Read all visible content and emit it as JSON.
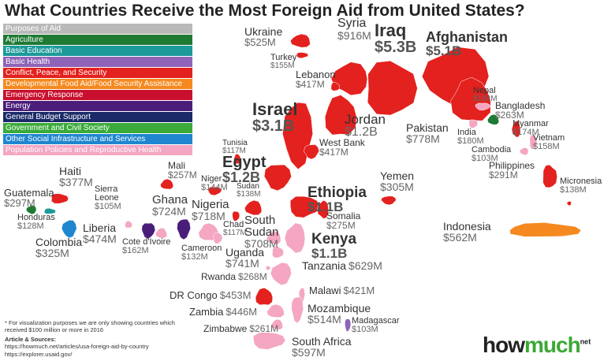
{
  "title": "What Countries Receive the Most Foreign Aid from United States?",
  "legend": {
    "title": "Purposes of Aid",
    "items": [
      "Agriculture",
      "Basic Education",
      "Basic Health",
      "Conflict, Peace, and Security",
      "Developmental Food Aid/Food Security Assistance",
      "Emergency Response",
      "Energy",
      "General Budget Support",
      "Government and Civil Society",
      "Other Social Infrastructure and Services",
      "Population Policies and Reproductive Health"
    ]
  },
  "countries": [
    {
      "name": "Ukraine",
      "amount": "$525M"
    },
    {
      "name": "Turkey",
      "amount": "$155M"
    },
    {
      "name": "Syria",
      "amount": "$916M"
    },
    {
      "name": "Iraq",
      "amount": "$5.3B"
    },
    {
      "name": "Afghanistan",
      "amount": "$5.1B"
    },
    {
      "name": "Lebanon",
      "amount": "$417M"
    },
    {
      "name": "Israel",
      "amount": "$3.1B"
    },
    {
      "name": "Jordan",
      "amount": "$1.2B"
    },
    {
      "name": "West Bank",
      "amount": "$417M"
    },
    {
      "name": "Pakistan",
      "amount": "$778M"
    },
    {
      "name": "Nepal",
      "amount": "$193M"
    },
    {
      "name": "Bangladesh",
      "amount": "$263M"
    },
    {
      "name": "India",
      "amount": "$180M"
    },
    {
      "name": "Myanmar",
      "amount": "$174M"
    },
    {
      "name": "Vietnam",
      "amount": "$158M"
    },
    {
      "name": "Cambodia",
      "amount": "$103M"
    },
    {
      "name": "Philippines",
      "amount": "$291M"
    },
    {
      "name": "Micronesia",
      "amount": "$138M"
    },
    {
      "name": "Indonesia",
      "amount": "$562M"
    },
    {
      "name": "Yemen",
      "amount": "$305M"
    },
    {
      "name": "Tunisia",
      "amount": "$117M"
    },
    {
      "name": "Egypt",
      "amount": "$1.2B"
    },
    {
      "name": "Mali",
      "amount": "$257M"
    },
    {
      "name": "Niger",
      "amount": "$144M"
    },
    {
      "name": "Sudan",
      "amount": "$138M"
    },
    {
      "name": "Ethiopia",
      "amount": "$1.1B"
    },
    {
      "name": "Somalia",
      "amount": "$275M"
    },
    {
      "name": "Haiti",
      "amount": "$377M"
    },
    {
      "name": "Guatemala",
      "amount": "$297M"
    },
    {
      "name": "Honduras",
      "amount": "$128M"
    },
    {
      "name": "Colombia",
      "amount": "$325M"
    },
    {
      "name": "Sierra Leone",
      "amount": "$105M"
    },
    {
      "name": "Ghana",
      "amount": "$724M"
    },
    {
      "name": "Nigeria",
      "amount": "$718M"
    },
    {
      "name": "Liberia",
      "amount": "$474M"
    },
    {
      "name": "Cote d'Ivoire",
      "amount": "$162M"
    },
    {
      "name": "Chad",
      "amount": "$117M"
    },
    {
      "name": "South Sudan",
      "amount": "$708M"
    },
    {
      "name": "Cameroon",
      "amount": "$132M"
    },
    {
      "name": "Kenya",
      "amount": "$1.1B"
    },
    {
      "name": "Uganda",
      "amount": "$741M"
    },
    {
      "name": "Tanzania",
      "amount": "$629M"
    },
    {
      "name": "Rwanda",
      "amount": "$268M"
    },
    {
      "name": "Malawi",
      "amount": "$421M"
    },
    {
      "name": "DR Congo",
      "amount": "$453M"
    },
    {
      "name": "Mozambique",
      "amount": "$514M"
    },
    {
      "name": "Zambia",
      "amount": "$446M"
    },
    {
      "name": "Madagascar",
      "amount": "$103M"
    },
    {
      "name": "Zimbabwe",
      "amount": "$261M"
    },
    {
      "name": "South Africa",
      "amount": "$597M"
    }
  ],
  "footnote": "* For visualization purposes we are only showing countries which received $100 million or more in 2016",
  "sources": {
    "heading": "Article & Sources:",
    "links": [
      "https://howmuch.net/articles/usa-foreign-aid-by-country",
      "https://explorer.usaid.gov/"
    ]
  },
  "logo": {
    "how": "how",
    "much": "much",
    "net": "net"
  }
}
